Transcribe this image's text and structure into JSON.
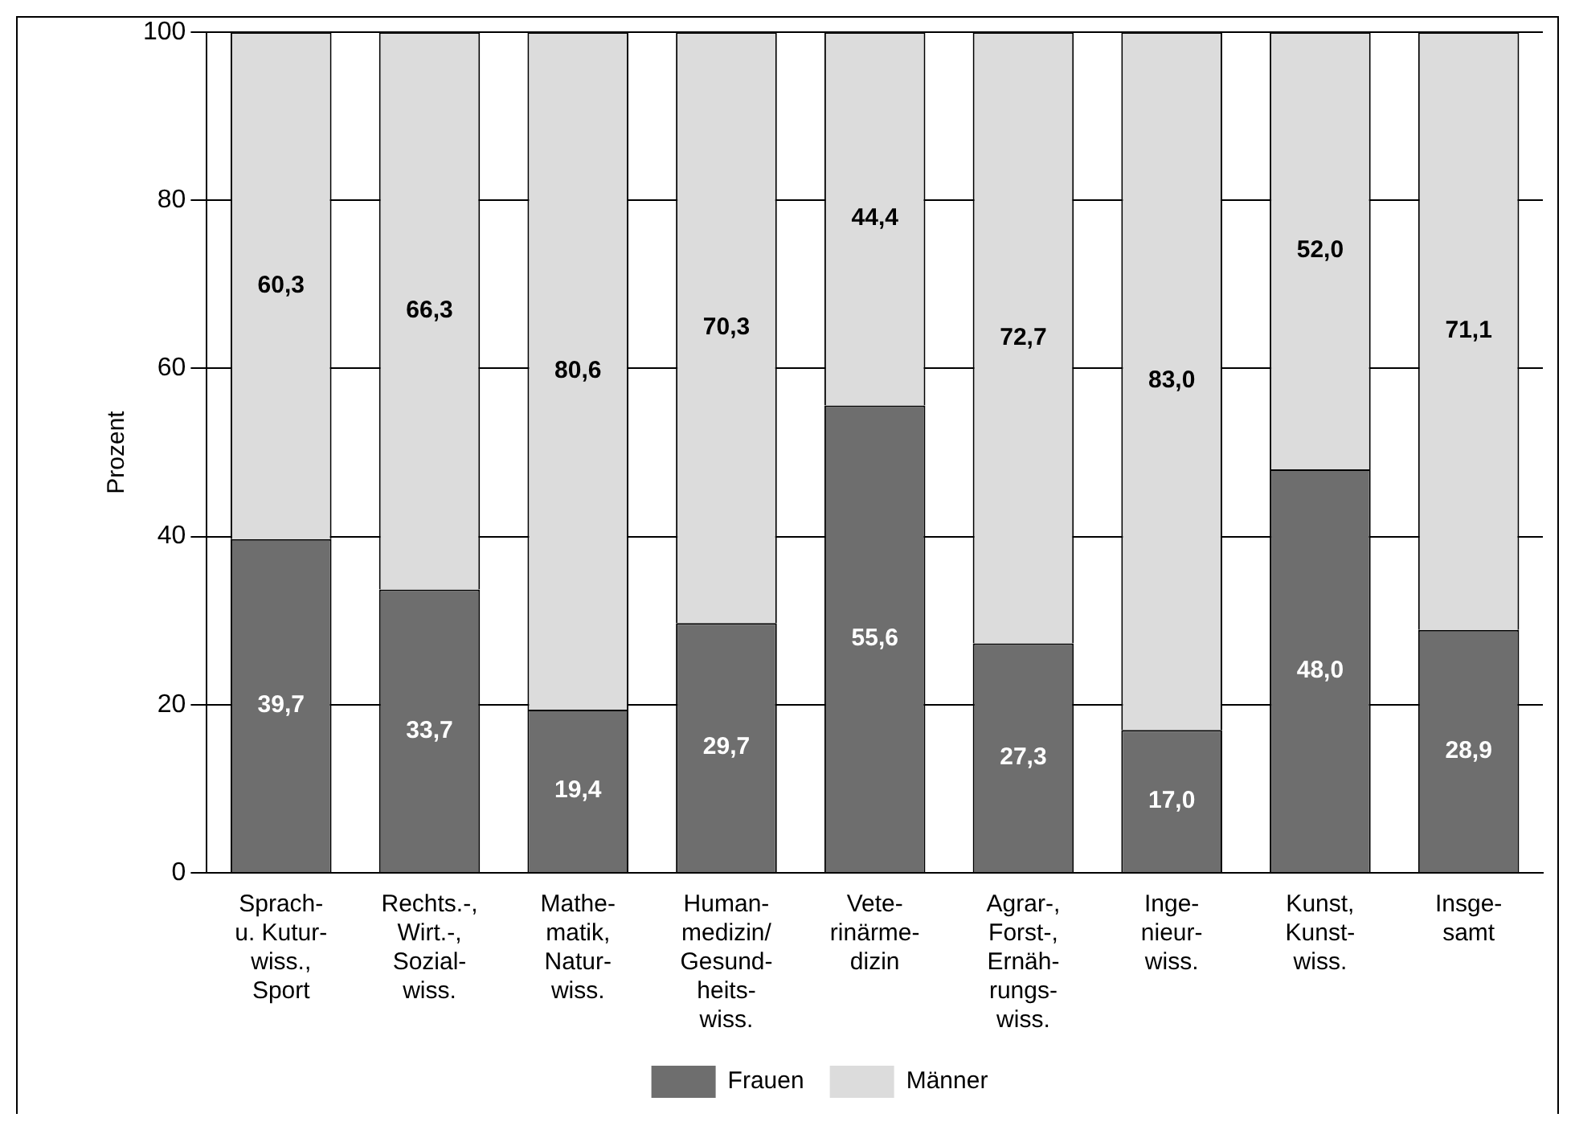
{
  "chart_data": {
    "type": "bar",
    "stacked": true,
    "ylabel": "Prozent",
    "categories": [
      "Sprach-\nu. Kutur-\nwiss.,\nSport",
      "Rechts.-,\nWirt.-,\nSozial-\nwiss.",
      "Mathe-\nmatik,\nNatur-\nwiss.",
      "Human-\nmedizin/\nGesund-\nheits-\nwiss.",
      "Vete-\nrinärme-\ndizin",
      "Agrar-,\nForst-,\nErnäh-\nrungs-\nwiss.",
      "Inge-\nnieur-\nwiss.",
      "Kunst,\nKunst-\nwiss.",
      "Insge-\nsamt"
    ],
    "series": [
      {
        "name": "Frauen",
        "color": "#6e6e6e",
        "values": [
          39.7,
          33.7,
          19.4,
          29.7,
          55.6,
          27.3,
          17.0,
          48.0,
          28.9
        ],
        "value_labels": [
          "39,7",
          "33,7",
          "19,4",
          "29,7",
          "55,6",
          "27,3",
          "17,0",
          "48,0",
          "28,9"
        ]
      },
      {
        "name": "Männer",
        "color": "#dcdcdc",
        "values": [
          60.3,
          66.3,
          80.6,
          70.3,
          44.4,
          72.7,
          83.0,
          52.0,
          71.1
        ],
        "value_labels": [
          "60,3",
          "66,3",
          "80,6",
          "70,3",
          "44,4",
          "72,7",
          "83,0",
          "52,0",
          "71,1"
        ]
      }
    ],
    "ylim": [
      0,
      100
    ],
    "yticks": [
      0,
      20,
      40,
      60,
      80,
      100
    ],
    "grid": "y",
    "legend": "bottom"
  }
}
